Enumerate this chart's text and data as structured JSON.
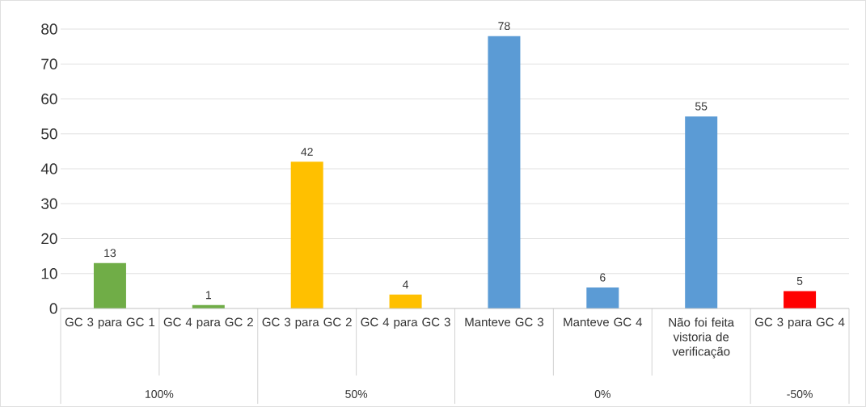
{
  "chart_data": {
    "type": "bar",
    "categories": [
      "GC 3 para GC 1",
      "GC 4 para GC 2",
      "GC 3 para GC 2",
      "GC 4 para GC 3",
      "Manteve GC 3",
      "Manteve GC 4",
      "Não foi feita vistoria de verificação",
      "GC 3 para GC 4"
    ],
    "values": [
      13,
      1,
      42,
      4,
      78,
      6,
      55,
      5
    ],
    "colors": [
      "#70ad47",
      "#70ad47",
      "#ffc000",
      "#ffc000",
      "#5b9bd5",
      "#5b9bd5",
      "#5b9bd5",
      "#ff0000"
    ],
    "annotations": [
      "100%",
      "50%",
      "0%",
      "-50%"
    ],
    "ylim": [
      0,
      80
    ],
    "yticks": [
      0,
      10,
      20,
      30,
      40,
      50,
      60,
      70,
      80
    ],
    "grid": "y",
    "data_labels": true
  }
}
